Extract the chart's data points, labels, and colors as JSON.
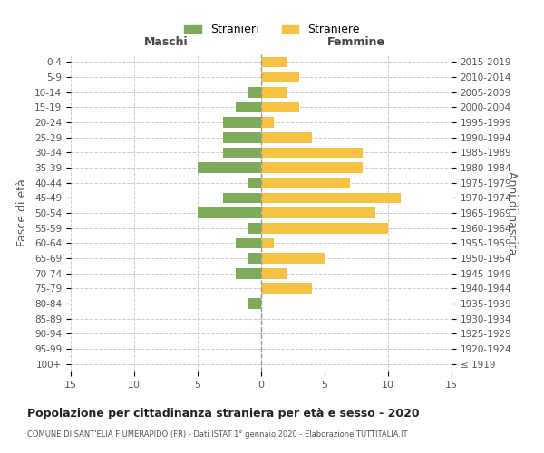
{
  "age_groups": [
    "100+",
    "95-99",
    "90-94",
    "85-89",
    "80-84",
    "75-79",
    "70-74",
    "65-69",
    "60-64",
    "55-59",
    "50-54",
    "45-49",
    "40-44",
    "35-39",
    "30-34",
    "25-29",
    "20-24",
    "15-19",
    "10-14",
    "5-9",
    "0-4"
  ],
  "birth_years": [
    "≤ 1919",
    "1920-1924",
    "1925-1929",
    "1930-1934",
    "1935-1939",
    "1940-1944",
    "1945-1949",
    "1950-1954",
    "1955-1959",
    "1960-1964",
    "1965-1969",
    "1970-1974",
    "1975-1979",
    "1980-1984",
    "1985-1989",
    "1990-1994",
    "1995-1999",
    "2000-2004",
    "2005-2009",
    "2010-2014",
    "2015-2019"
  ],
  "males": [
    0,
    0,
    0,
    0,
    1,
    0,
    2,
    1,
    2,
    1,
    5,
    3,
    1,
    5,
    3,
    3,
    3,
    2,
    1,
    0,
    0
  ],
  "females": [
    0,
    0,
    0,
    0,
    0,
    4,
    2,
    5,
    1,
    10,
    9,
    11,
    7,
    8,
    8,
    4,
    1,
    3,
    2,
    3,
    2
  ],
  "male_color": "#7dab5a",
  "female_color": "#f5c242",
  "background_color": "#ffffff",
  "grid_color": "#cccccc",
  "xlim": 15,
  "title": "Popolazione per cittadinanza straniera per età e sesso - 2020",
  "subtitle": "COMUNE DI SANT'ELIA FIUMERAPIDO (FR) - Dati ISTAT 1° gennaio 2020 - Elaborazione TUTTITALIA.IT",
  "ylabel_left": "Fasce di età",
  "ylabel_right": "Anni di nascita",
  "xlabel_left": "Maschi",
  "xlabel_right": "Femmine",
  "legend_stranieri": "Stranieri",
  "legend_straniere": "Straniere",
  "xtick_positions": [
    -15,
    -10,
    -5,
    0,
    5,
    10,
    15
  ],
  "xtick_labels": [
    "15",
    "10",
    "5",
    "0",
    "5",
    "10",
    "15"
  ]
}
